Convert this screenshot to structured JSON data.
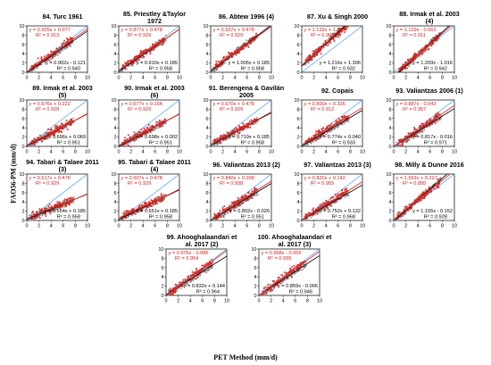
{
  "figure": {
    "xlabel": "PET Method (mm/d)",
    "ylabel": "FAO56-PM (mm/d)",
    "colors": {
      "red_points": "#d8231e",
      "grey_points": "#8a8a8a",
      "red_line": "#e52b2b",
      "black_line": "#111111",
      "one_to_one_line": "#4aa3ff",
      "red_text": "#d42020"
    }
  },
  "chart_data": [
    {
      "type": "scatter",
      "title": "84. Turc 1961",
      "xlim": [
        0,
        10
      ],
      "ylim": [
        0,
        10
      ],
      "xticks": [
        "0",
        "2",
        "4",
        "6",
        "8",
        "10"
      ],
      "yticks": [
        "0",
        "2",
        "4",
        "6",
        "8",
        "10"
      ],
      "red_fit": {
        "slope": 0.925,
        "intercept": 0.077,
        "r2": 0.913,
        "eq": "y = 0.925x + 0.077",
        "r2_label": "R² = 0.913"
      },
      "black_fit": {
        "slope": 0.902,
        "intercept": -0.121,
        "r2": 0.94,
        "eq": "y = 0.902x - 0.121",
        "r2_label": "R² = 0.940"
      }
    },
    {
      "type": "scatter",
      "title": "85. Priestley &Taylor 1972",
      "xlim": [
        0,
        10
      ],
      "ylim": [
        0,
        10
      ],
      "xticks": [
        "0",
        "2",
        "4",
        "6",
        "8",
        "10"
      ],
      "yticks": [
        "0",
        "2",
        "4",
        "6",
        "8",
        "10"
      ],
      "red_fit": {
        "slope": 0.877,
        "intercept": 0.478,
        "r2": 0.929,
        "eq": "y = 0.877x + 0.478",
        "r2_label": "R² = 0.929"
      },
      "black_fit": {
        "slope": 0.91,
        "intercept": 0.185,
        "r2": 0.958,
        "eq": "y = 0.910x + 0.185",
        "r2_label": "R² = 0.958"
      }
    },
    {
      "type": "scatter",
      "title": "86. Abtew 1996 (4)",
      "xlim": [
        0,
        10
      ],
      "ylim": [
        0,
        10
      ],
      "xticks": [
        "0",
        "2",
        "4",
        "6",
        "8",
        "10"
      ],
      "yticks": [
        "0",
        "2",
        "4",
        "6",
        "8",
        "10"
      ],
      "red_fit": {
        "slope": 0.937,
        "intercept": 0.478,
        "r2": 0.929,
        "eq": "y = 0.937x + 0.478",
        "r2_label": "R² = 0.929"
      },
      "black_fit": {
        "slope": 1.005,
        "intercept": 0.185,
        "r2": 0.958,
        "eq": "y = 1.005x + 0.185",
        "r2_label": "R² = 0.958"
      }
    },
    {
      "type": "scatter",
      "title": "87. Xu & Singh 2000",
      "xlim": [
        0,
        10
      ],
      "ylim": [
        0,
        10
      ],
      "xticks": [
        "0",
        "2",
        "4",
        "6",
        "8",
        "10"
      ],
      "yticks": [
        "0",
        "2",
        "4",
        "6",
        "8",
        "10"
      ],
      "red_fit": {
        "slope": 1.133,
        "intercept": 1.524,
        "r2": 0.905,
        "eq": "y = 1.133x + 1.524",
        "r2_label": "R² = 0.905"
      },
      "black_fit": {
        "slope": 1.216,
        "intercept": 1.306,
        "r2": 0.932,
        "eq": "y = 1.216x + 1.306",
        "r2_label": "R² = 0.932"
      }
    },
    {
      "type": "scatter",
      "title": "88. Irmak et al. 2003 (4)",
      "xlim": [
        0,
        10
      ],
      "ylim": [
        0,
        10
      ],
      "xticks": [
        "0",
        "2",
        "4",
        "6",
        "8",
        "10"
      ],
      "yticks": [
        "0",
        "2",
        "4",
        "6",
        "8",
        "10"
      ],
      "red_fit": {
        "slope": 1.129,
        "intercept": -0.663,
        "r2": 0.911,
        "eq": "y = 1.129x - 0.663",
        "r2_label": "R² = 0.911"
      },
      "black_fit": {
        "slope": 1.209,
        "intercept": -1.016,
        "r2": 0.942,
        "eq": "y = 1.209x - 1.016",
        "r2_label": "R² = 0.942"
      }
    },
    {
      "type": "scatter",
      "title": "89. Irmak et al. 2003 (5)",
      "xlim": [
        0,
        10
      ],
      "ylim": [
        0,
        10
      ],
      "xticks": [
        "0",
        "2",
        "4",
        "6",
        "8",
        "10"
      ],
      "yticks": [
        "0",
        "2",
        "4",
        "6",
        "8",
        "10"
      ],
      "red_fit": {
        "slope": 0.676,
        "intercept": 0.222,
        "r2": 0.928,
        "eq": "y = 0.676x + 0.222",
        "r2_label": "R² = 0.928"
      },
      "black_fit": {
        "slope": 0.696,
        "intercept": 0.069,
        "r2": 0.951,
        "eq": "y = 0.696x + 0.069",
        "r2_label": "R² = 0.951"
      }
    },
    {
      "type": "scatter",
      "title": "90. Irmak et al. 2003 (6)",
      "xlim": [
        0,
        10
      ],
      "ylim": [
        0,
        10
      ],
      "xticks": [
        "0",
        "2",
        "4",
        "6",
        "8",
        "10"
      ],
      "yticks": [
        "0",
        "2",
        "4",
        "6",
        "8",
        "10"
      ],
      "red_fit": {
        "slope": 0.677,
        "intercept": 0.164,
        "r2": 0.929,
        "eq": "y = 0.677x + 0.164",
        "r2_label": "R² = 0.929"
      },
      "black_fit": {
        "slope": 0.698,
        "intercept": 0.002,
        "r2": 0.951,
        "eq": "y = 0.698x + 0.002",
        "r2_label": "R² = 0.951"
      }
    },
    {
      "type": "scatter",
      "title": "91. Berengena & Gavilán 2005",
      "xlim": [
        0,
        10
      ],
      "ylim": [
        0,
        10
      ],
      "xticks": [
        "0",
        "2",
        "4",
        "6",
        "8",
        "10"
      ],
      "yticks": [
        "0",
        "2",
        "4",
        "6",
        "8",
        "10"
      ],
      "red_fit": {
        "slope": 0.67,
        "intercept": 0.478,
        "r2": 0.929,
        "eq": "y = 0.670x + 0.478",
        "r2_label": "R² = 0.929"
      },
      "black_fit": {
        "slope": 0.719,
        "intercept": 0.185,
        "r2": 0.958,
        "eq": "y = 0.719x + 0.185",
        "r2_label": "R² = 0.958"
      }
    },
    {
      "type": "scatter",
      "title": "92. Copais",
      "xlim": [
        0,
        10
      ],
      "ylim": [
        0,
        10
      ],
      "xticks": [
        "0",
        "2",
        "4",
        "6",
        "8",
        "10"
      ],
      "yticks": [
        "0",
        "2",
        "4",
        "6",
        "8",
        "10"
      ],
      "red_fit": {
        "slope": 0.8,
        "intercept": 0.326,
        "r2": 0.912,
        "eq": "y = 0.800x + 0.326",
        "r2_label": "R² = 0.912"
      },
      "black_fit": {
        "slope": 0.774,
        "intercept": 0.04,
        "r2": 0.933,
        "eq": "y = 0.774x + 0.040",
        "r2_label": "R² = 0.933"
      }
    },
    {
      "type": "scatter",
      "title": "93. Valiantzas 2006 (1)",
      "xlim": [
        0,
        10
      ],
      "ylim": [
        0,
        10
      ],
      "xticks": [
        "0",
        "2",
        "4",
        "6",
        "8",
        "10"
      ],
      "yticks": [
        "0",
        "2",
        "4",
        "6",
        "8",
        "10"
      ],
      "red_fit": {
        "slope": 0.887,
        "intercept": -0.043,
        "r2": 0.957,
        "eq": "y = 0.887x - 0.043",
        "r2_label": "R² = 0.957"
      },
      "black_fit": {
        "slope": 0.817,
        "intercept": -0.016,
        "r2": 0.971,
        "eq": "y = 0.817x - 0.016",
        "r2_label": "R² = 0.971"
      }
    },
    {
      "type": "scatter",
      "title": "94. Tabari & Talaee 2011 (3)",
      "xlim": [
        0,
        10
      ],
      "ylim": [
        0,
        10
      ],
      "xticks": [
        "0",
        "2",
        "4",
        "6",
        "8",
        "10"
      ],
      "yticks": [
        "0",
        "2",
        "4",
        "6",
        "8",
        "10"
      ],
      "red_fit": {
        "slope": 0.517,
        "intercept": 0.478,
        "r2": 0.929,
        "eq": "y = 0.517x + 0.478",
        "r2_label": "R² = 0.929"
      },
      "black_fit": {
        "slope": 0.554,
        "intercept": 0.185,
        "r2": 0.958,
        "eq": "y = 0.554x + 0.185",
        "r2_label": "R² = 0.958"
      }
    },
    {
      "type": "scatter",
      "title": "95. Tabari & Talaee 2011 (4)",
      "xlim": [
        0,
        10
      ],
      "ylim": [
        0,
        10
      ],
      "xticks": [
        "0",
        "2",
        "4",
        "6",
        "8",
        "10"
      ],
      "yticks": [
        "0",
        "2",
        "4",
        "6",
        "8",
        "10"
      ],
      "red_fit": {
        "slope": 0.607,
        "intercept": 0.478,
        "r2": 0.929,
        "eq": "y = 0.607x + 0.478",
        "r2_label": "R² = 0.929"
      },
      "black_fit": {
        "slope": 0.651,
        "intercept": 0.185,
        "r2": 0.958,
        "eq": "y = 0.651x + 0.185",
        "r2_label": "R² = 0.958"
      }
    },
    {
      "type": "scatter",
      "title": "96. Valiantzas 2013 (2)",
      "xlim": [
        0,
        10
      ],
      "ylim": [
        0,
        10
      ],
      "xticks": [
        "0",
        "2",
        "4",
        "6",
        "8",
        "10"
      ],
      "yticks": [
        "0",
        "2",
        "4",
        "6",
        "8",
        "10"
      ],
      "red_fit": {
        "slope": 0.84,
        "intercept": 0.098,
        "r2": 0.938,
        "eq": "y = 0.840x + 0.098",
        "r2_label": "R² = 0.938"
      },
      "black_fit": {
        "slope": 0.802,
        "intercept": -0.026,
        "r2": 0.951,
        "eq": "y = 0.802x - 0.026",
        "r2_label": "R² = 0.951"
      }
    },
    {
      "type": "scatter",
      "title": "97. Valiantzas 2013 (3)",
      "xlim": [
        0,
        10
      ],
      "ylim": [
        0,
        10
      ],
      "xticks": [
        "0",
        "2",
        "4",
        "6",
        "8",
        "10"
      ],
      "yticks": [
        "0",
        "2",
        "4",
        "6",
        "8",
        "10"
      ],
      "red_fit": {
        "slope": 0.82,
        "intercept": 0.142,
        "r2": 0.955,
        "eq": "y = 0.820x + 0.142",
        "r2_label": "R² = 0.955"
      },
      "black_fit": {
        "slope": 0.752,
        "intercept": 0.132,
        "r2": 0.968,
        "eq": "y = 0.752x + 0.132",
        "r2_label": "R² = 0.968"
      }
    },
    {
      "type": "scatter",
      "title": "98. Milly & Dunne 2016",
      "xlim": [
        0,
        10
      ],
      "ylim": [
        0,
        10
      ],
      "xticks": [
        "0",
        "2",
        "4",
        "6",
        "8",
        "10"
      ],
      "yticks": [
        "0",
        "2",
        "4",
        "6",
        "8",
        "10"
      ],
      "red_fit": {
        "slope": 1.053,
        "intercept": 0.227,
        "r2": 0.895,
        "eq": "y = 1.053x + 0.227",
        "r2_label": "R² = 0.895"
      },
      "black_fit": {
        "slope": 1.155,
        "intercept": -0.152,
        "r2": 0.928,
        "eq": "y = 1.155x - 0.152",
        "r2_label": "R² = 0.928"
      }
    },
    {
      "type": "scatter",
      "title": "99. Ahooghalaandari et al. 2017 (2)",
      "xlim": [
        0,
        10
      ],
      "ylim": [
        0,
        10
      ],
      "xticks": [
        "0",
        "2",
        "4",
        "6",
        "8",
        "10"
      ],
      "yticks": [
        "0",
        "2",
        "4",
        "6",
        "8",
        "10"
      ],
      "red_fit": {
        "slope": 0.976,
        "intercept": -0.086,
        "r2": 0.954,
        "eq": "y = 0.976x - 0.086",
        "r2_label": "R² = 0.954"
      },
      "black_fit": {
        "slope": 0.832,
        "intercept": 0.144,
        "r2": 0.964,
        "eq": "y = 0.832x + 0.144",
        "r2_label": "R² = 0.964"
      }
    },
    {
      "type": "scatter",
      "title": "100. Ahooghalaandari et al. 2017 (3)",
      "xlim": [
        0,
        10
      ],
      "ylim": [
        0,
        10
      ],
      "xticks": [
        "0",
        "2",
        "4",
        "6",
        "8",
        "10"
      ],
      "yticks": [
        "0",
        "2",
        "4",
        "6",
        "8",
        "10"
      ],
      "red_fit": {
        "slope": 0.958,
        "intercept": -0.055,
        "r2": 0.939,
        "eq": "y = 0.958x - 0.055",
        "r2_label": "R² = 0.939"
      },
      "black_fit": {
        "slope": 0.859,
        "intercept": -0.006,
        "r2": 0.946,
        "eq": "y = 0.859x - 0.006",
        "r2_label": "R² = 0.946"
      }
    }
  ]
}
